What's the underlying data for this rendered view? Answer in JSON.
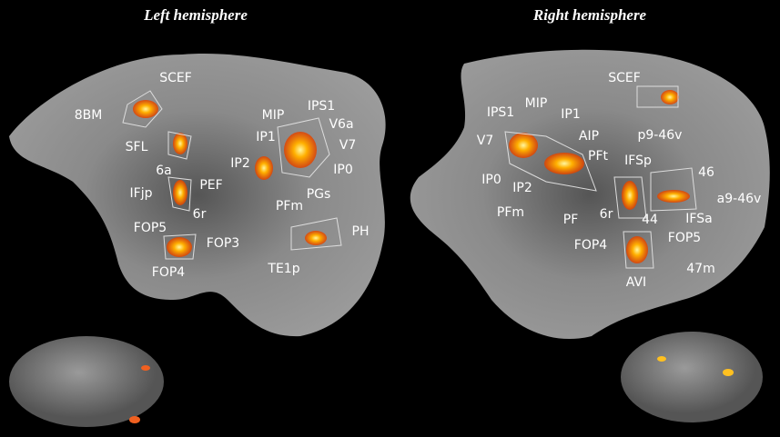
{
  "panels": [
    {
      "title": "Left hemisphere",
      "labels": [
        "SCEF",
        "8BM",
        "SFL",
        "6a",
        "IFjp",
        "PEF",
        "6r",
        "FOP5",
        "FOP3",
        "FOP4",
        "MIP",
        "IPS1",
        "V6a",
        "IP1",
        "V7",
        "IP2",
        "IP0",
        "PGs",
        "PFm",
        "PH",
        "TE1p"
      ]
    },
    {
      "title": "Right hemisphere",
      "labels": [
        "SCEF",
        "MIP",
        "IPS1",
        "IP1",
        "V7",
        "AIP",
        "PFt",
        "p9-46v",
        "IP0",
        "IP2",
        "IFSp",
        "46",
        "a9-46v",
        "PFm",
        "PF",
        "6r",
        "44",
        "IFSa",
        "FOP4",
        "FOP5",
        "AVI",
        "47m"
      ]
    }
  ]
}
